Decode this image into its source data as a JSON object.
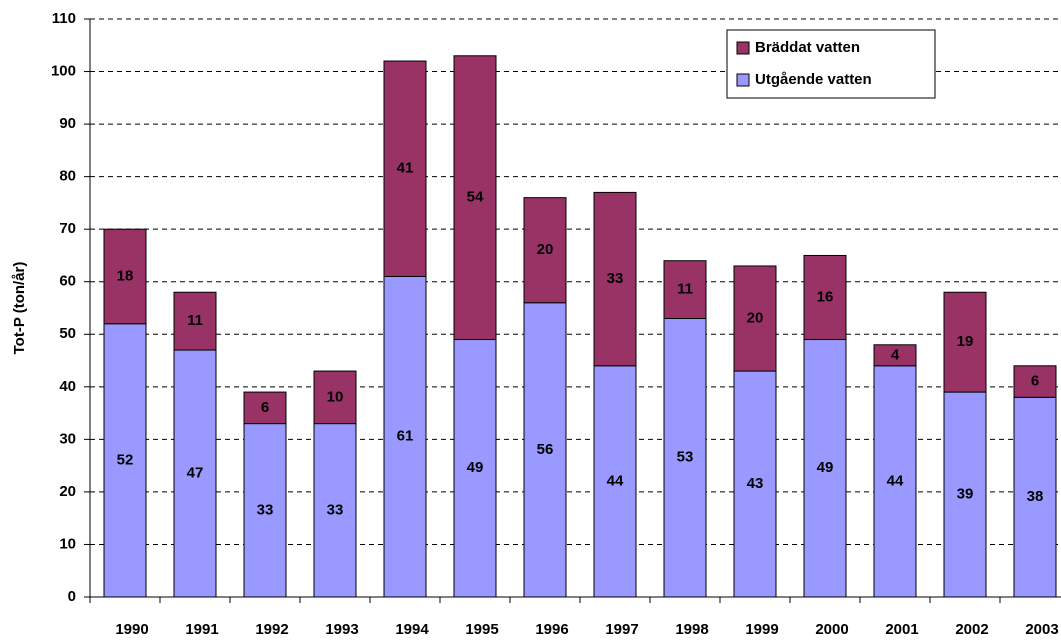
{
  "chart_data": {
    "type": "stacked-bar",
    "y_label": "Tot-P (ton/år)",
    "categories": [
      "1990",
      "1991",
      "1992",
      "1993",
      "1994",
      "1995",
      "1996",
      "1997",
      "1998",
      "1999",
      "2000",
      "2001",
      "2002",
      "2003"
    ],
    "series": [
      {
        "name": "Utgående vatten",
        "color": "#9999ff",
        "values": [
          52,
          47,
          33,
          33,
          61,
          49,
          56,
          44,
          53,
          43,
          49,
          44,
          39,
          38
        ]
      },
      {
        "name": "Bräddat vatten",
        "color": "#993366",
        "values": [
          18,
          11,
          6,
          10,
          41,
          54,
          20,
          33,
          11,
          20,
          16,
          4,
          19,
          6
        ]
      }
    ],
    "ylim": [
      0,
      110
    ],
    "yticks": [
      0,
      10,
      20,
      30,
      40,
      50,
      60,
      70,
      80,
      90,
      100,
      110
    ],
    "grid": true,
    "legend": "top-right"
  }
}
